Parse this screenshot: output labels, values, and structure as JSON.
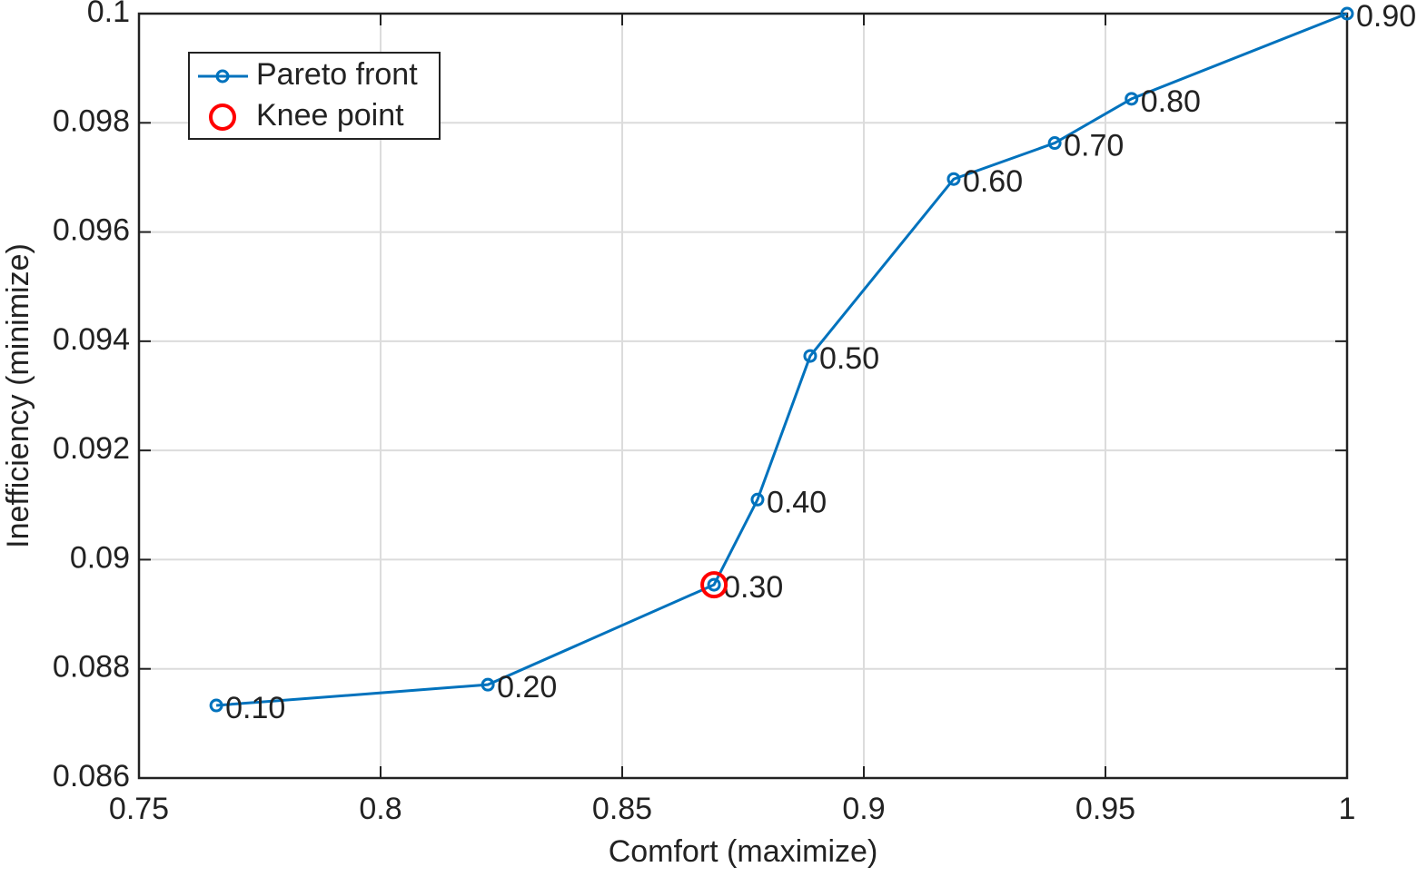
{
  "chart_data": {
    "type": "line",
    "xlabel": "Comfort (maximize)",
    "ylabel": "Inefficiency (minimize)",
    "xlim": [
      0.75,
      1
    ],
    "xticks": [
      0.75,
      0.8,
      0.85,
      0.9,
      0.95,
      1
    ],
    "ylim": [
      0.086,
      0.1
    ],
    "yticks": [
      0.086,
      0.088,
      0.09,
      0.092,
      0.094,
      0.096,
      0.098,
      0.1
    ],
    "grid": true,
    "legend": "upper left",
    "series": [
      {
        "name": "Pareto front",
        "color": "#0072bd",
        "style": "line-marker",
        "x": [
          0.766,
          0.8222,
          0.869,
          0.878,
          0.8889,
          0.9186,
          0.9395,
          0.9554,
          1.0
        ],
        "values": [
          0.08733,
          0.08771,
          0.08954,
          0.0911,
          0.09373,
          0.09697,
          0.09763,
          0.09844,
          0.1
        ],
        "point_labels": [
          "0.10",
          "0.20",
          "0.30",
          "0.40",
          "0.50",
          "0.60",
          "0.70",
          "0.80",
          "0.90"
        ]
      },
      {
        "name": "Knee point",
        "color": "#ff0000",
        "style": "marker",
        "x": [
          0.869
        ],
        "values": [
          0.08954
        ]
      }
    ]
  }
}
